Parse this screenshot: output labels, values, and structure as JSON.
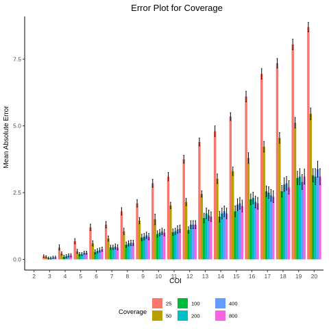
{
  "chart_data": {
    "type": "bar",
    "title": "Error Plot for Coverage",
    "xlabel": "COI",
    "ylabel": "Mean Absolute Error",
    "categories": [
      "2",
      "3",
      "4",
      "5",
      "6",
      "7",
      "8",
      "9",
      "10",
      "11",
      "12",
      "13",
      "14",
      "15",
      "16",
      "17",
      "18",
      "19",
      "20"
    ],
    "y_ticks": [
      "0.0",
      "2.5",
      "5.0",
      "7.5"
    ],
    "y_tick_values": [
      0,
      2.5,
      5.0,
      7.5
    ],
    "ylim": [
      -0.4,
      9.1
    ],
    "grid": false,
    "legend_position": "bottom",
    "legend_title": "Coverage",
    "series": [
      {
        "name": "25",
        "color": "#F8766D",
        "values": [
          null,
          0.12,
          0.45,
          0.68,
          1.2,
          1.3,
          1.8,
          2.1,
          2.85,
          3.1,
          3.75,
          4.4,
          4.8,
          5.35,
          6.1,
          6.95,
          7.35,
          8.05,
          8.7
        ],
        "errors": [
          null,
          0.05,
          0.1,
          0.1,
          0.12,
          0.12,
          0.14,
          0.14,
          0.15,
          0.16,
          0.15,
          0.15,
          0.2,
          0.15,
          0.2,
          0.2,
          0.18,
          0.2,
          0.18
        ]
      },
      {
        "name": "50",
        "color": "#B79F00",
        "values": [
          null,
          0.1,
          0.22,
          0.3,
          0.6,
          0.78,
          1.05,
          1.45,
          1.5,
          2.02,
          2.15,
          2.45,
          3.02,
          3.3,
          3.8,
          4.22,
          4.55,
          5.12,
          5.45
        ],
        "errors": [
          null,
          0.04,
          0.06,
          0.08,
          0.1,
          0.1,
          0.12,
          0.12,
          0.2,
          0.12,
          0.14,
          0.12,
          0.18,
          0.16,
          0.2,
          0.2,
          0.2,
          0.2,
          0.22
        ]
      },
      {
        "name": "100",
        "color": "#00BA38",
        "values": [
          null,
          0.05,
          0.1,
          0.2,
          0.28,
          0.45,
          0.55,
          0.82,
          0.95,
          1.02,
          1.1,
          1.55,
          1.6,
          1.8,
          2.25,
          2.55,
          2.55,
          3.05,
          3.15
        ],
        "errors": [
          null,
          0.04,
          0.06,
          0.06,
          0.08,
          0.08,
          0.1,
          0.12,
          0.12,
          0.12,
          0.12,
          0.18,
          0.2,
          0.2,
          0.2,
          0.2,
          0.22,
          0.25,
          0.25
        ]
      },
      {
        "name": "200",
        "color": "#00BFC4",
        "values": [
          null,
          0.05,
          0.12,
          0.2,
          0.32,
          0.45,
          0.6,
          0.85,
          1.0,
          1.05,
          1.3,
          1.72,
          1.72,
          2.05,
          2.3,
          2.5,
          2.8,
          3.1,
          3.1
        ],
        "errors": [
          null,
          0.04,
          0.06,
          0.06,
          0.08,
          0.08,
          0.1,
          0.12,
          0.12,
          0.12,
          0.15,
          0.2,
          0.2,
          0.22,
          0.22,
          0.22,
          0.25,
          0.3,
          0.3
        ]
      },
      {
        "name": "400",
        "color": "#619CFF",
        "values": [
          null,
          0.08,
          0.15,
          0.25,
          0.35,
          0.48,
          0.62,
          0.9,
          1.05,
          1.12,
          1.3,
          1.65,
          1.8,
          2.1,
          2.15,
          2.4,
          2.85,
          2.9,
          3.38
        ],
        "errors": [
          null,
          0.04,
          0.06,
          0.06,
          0.08,
          0.1,
          0.1,
          0.12,
          0.12,
          0.14,
          0.15,
          0.2,
          0.2,
          0.22,
          0.22,
          0.22,
          0.25,
          0.28,
          0.3
        ]
      },
      {
        "name": "800",
        "color": "#F564E3",
        "values": [
          null,
          0.08,
          0.15,
          0.25,
          0.38,
          0.45,
          0.62,
          0.85,
          1.0,
          1.15,
          1.3,
          1.6,
          1.72,
          2.0,
          2.1,
          2.35,
          2.7,
          3.1,
          3.1
        ],
        "errors": [
          null,
          0.04,
          0.06,
          0.06,
          0.08,
          0.1,
          0.1,
          0.12,
          0.12,
          0.14,
          0.15,
          0.18,
          0.2,
          0.22,
          0.22,
          0.22,
          0.25,
          0.28,
          0.3
        ]
      }
    ]
  }
}
